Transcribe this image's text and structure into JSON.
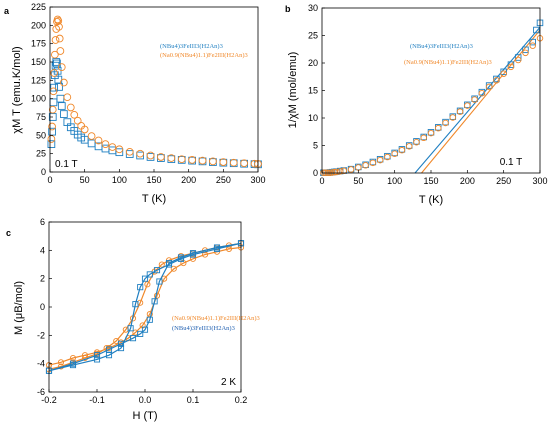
{
  "colors": {
    "blue": "#1f7fc1",
    "orange": "#f0882a",
    "axis": "#000000"
  },
  "chart_data": [
    {
      "panel_label": "a",
      "type": "scatter",
      "xlabel": "T (K)",
      "ylabel": "χM T (emu.K/mol)",
      "xlim": [
        0,
        300
      ],
      "ylim": [
        0,
        225
      ],
      "xticks": [
        "0",
        "50",
        "100",
        "150",
        "200",
        "250",
        "300"
      ],
      "yticks": [
        "0",
        "25",
        "50",
        "75",
        "100",
        "125",
        "150",
        "175",
        "200",
        "225"
      ],
      "annotation": "0.1 T",
      "legend_position": "top-right",
      "series": [
        {
          "name": "(NBu4)3FeIII3(H2An)3",
          "color": "blue",
          "marker": "square",
          "x": [
            2,
            3,
            4,
            5,
            6,
            7,
            8,
            9,
            10,
            11,
            12,
            13,
            15,
            17,
            20,
            25,
            30,
            35,
            40,
            45,
            50,
            60,
            70,
            80,
            90,
            100,
            115,
            130,
            145,
            160,
            175,
            190,
            205,
            220,
            235,
            250,
            265,
            280,
            295,
            300
          ],
          "y": [
            38,
            55,
            75,
            95,
            115,
            132,
            145,
            150,
            148,
            138,
            126,
            116,
            100,
            90,
            79,
            68,
            61,
            56,
            51,
            47,
            44,
            39,
            35,
            32,
            29.5,
            27,
            24.5,
            22.5,
            20.5,
            19,
            17.5,
            16.5,
            15.5,
            14.5,
            13.5,
            12.7,
            12,
            11.3,
            10.7,
            10.5
          ]
        },
        {
          "name": "(Na0.9(NBu4)1.1)Fe2III(H2An)3",
          "color": "orange",
          "marker": "circle",
          "x": [
            2,
            3,
            4,
            5,
            6,
            7,
            8,
            9,
            10,
            11,
            12,
            13,
            14,
            15,
            17,
            20,
            25,
            30,
            35,
            40,
            45,
            50,
            60,
            70,
            80,
            90,
            100,
            115,
            130,
            145,
            160,
            175,
            190,
            205,
            220,
            235,
            250,
            265,
            280,
            295,
            300
          ],
          "y": [
            45,
            62,
            85,
            110,
            135,
            160,
            180,
            195,
            205,
            208,
            206,
            198,
            182,
            165,
            143,
            122,
            102,
            88,
            78,
            70,
            63,
            58,
            49,
            43,
            38,
            34,
            31,
            27.5,
            25,
            22.5,
            20.5,
            19,
            17.5,
            16.5,
            15.5,
            14.5,
            13.5,
            12.7,
            12,
            11.3,
            11
          ]
        }
      ]
    },
    {
      "panel_label": "b",
      "type": "scatter",
      "xlabel": "T (K)",
      "ylabel": "1/χM (mol/emu)",
      "xlim": [
        0,
        300
      ],
      "ylim": [
        0,
        30
      ],
      "xticks": [
        "0",
        "50",
        "100",
        "150",
        "200",
        "250",
        "300"
      ],
      "yticks": [
        "0",
        "5",
        "10",
        "15",
        "20",
        "25",
        "30"
      ],
      "annotation": "0.1 T",
      "legend_position": "top-center",
      "series": [
        {
          "name": "(NBu4)3FeIII3(H2An)3",
          "color": "blue",
          "marker": "square",
          "x": [
            2,
            5,
            8,
            11,
            14,
            17,
            20,
            25,
            30,
            40,
            50,
            60,
            70,
            80,
            90,
            100,
            110,
            120,
            130,
            140,
            150,
            160,
            170,
            180,
            190,
            200,
            210,
            220,
            230,
            240,
            250,
            260,
            270,
            280,
            290,
            295,
            300
          ],
          "y": [
            0.05,
            0.05,
            0.05,
            0.1,
            0.15,
            0.2,
            0.25,
            0.35,
            0.45,
            0.7,
            1.1,
            1.5,
            2.0,
            2.5,
            3.05,
            3.65,
            4.3,
            5.0,
            5.75,
            6.55,
            7.4,
            8.3,
            9.25,
            10.25,
            11.3,
            12.4,
            13.5,
            14.7,
            15.9,
            17.1,
            18.4,
            19.7,
            21.0,
            22.4,
            23.8,
            26.0,
            27.3
          ]
        },
        {
          "name": "(Na0.9(NBu4)1.1)Fe2III(H2An)3",
          "color": "orange",
          "marker": "circle",
          "x": [
            2,
            5,
            8,
            11,
            14,
            17,
            20,
            25,
            30,
            40,
            50,
            60,
            70,
            80,
            90,
            100,
            110,
            120,
            130,
            140,
            150,
            160,
            170,
            180,
            190,
            200,
            210,
            220,
            230,
            240,
            250,
            260,
            270,
            280,
            290,
            300
          ],
          "y": [
            0.05,
            0.05,
            0.05,
            0.05,
            0.1,
            0.15,
            0.2,
            0.3,
            0.4,
            0.65,
            1.0,
            1.4,
            1.85,
            2.35,
            2.9,
            3.5,
            4.15,
            4.85,
            5.6,
            6.4,
            7.25,
            8.15,
            9.1,
            10.1,
            11.15,
            12.25,
            13.35,
            14.5,
            15.65,
            16.85,
            18.05,
            19.3,
            20.55,
            21.85,
            23.15,
            24.5
          ]
        }
      ],
      "fit_lines": [
        {
          "color": "blue",
          "x": [
            128,
            300
          ],
          "y": [
            0,
            26.5
          ]
        },
        {
          "color": "orange",
          "x": [
            137,
            300
          ],
          "y": [
            0,
            26.0
          ]
        }
      ]
    },
    {
      "panel_label": "c",
      "type": "line",
      "xlabel": "H (T)",
      "ylabel": "M (μB/mol)",
      "xlim": [
        -0.2,
        0.2
      ],
      "ylim": [
        -6,
        6
      ],
      "xticks": [
        "-0.2",
        "-0.1",
        "0.0",
        "0.1",
        "0.2"
      ],
      "yticks": [
        "-6",
        "-4",
        "-2",
        "0",
        "2",
        "4",
        "6"
      ],
      "annotation": "2 K",
      "legend_position": "center-right",
      "series": [
        {
          "name": "(Na0.9(NBu4)1.1)Fe2III(H2An)3",
          "color": "orange",
          "marker": "circle",
          "x": [
            -0.2,
            -0.175,
            -0.15,
            -0.125,
            -0.1,
            -0.075,
            -0.05,
            -0.035,
            -0.02,
            -0.005,
            0.01,
            0.025,
            0.04,
            0.06,
            0.08,
            0.1,
            0.125,
            0.15,
            0.175,
            0.2,
            0.2,
            0.175,
            0.15,
            0.125,
            0.1,
            0.075,
            0.05,
            0.035,
            0.02,
            0.005,
            -0.01,
            -0.025,
            -0.04,
            -0.06,
            -0.08,
            -0.1,
            -0.125,
            -0.15,
            -0.175,
            -0.2
          ],
          "y": [
            -4.1,
            -3.9,
            -3.6,
            -3.4,
            -3.2,
            -2.9,
            -2.5,
            -2.2,
            -1.8,
            -1.3,
            -0.5,
            0.8,
            2.0,
            2.7,
            3.1,
            3.4,
            3.7,
            3.9,
            4.1,
            4.2,
            4.5,
            4.35,
            4.2,
            4.0,
            3.8,
            3.6,
            3.3,
            3.0,
            2.5,
            1.6,
            0.3,
            -0.8,
            -1.6,
            -2.4,
            -2.9,
            -3.3,
            -3.6,
            -3.9,
            -4.2,
            -4.4
          ]
        },
        {
          "name": "(NBu4)3FeIII3(H2An)3",
          "color": "blue",
          "marker": "square",
          "x": [
            -0.2,
            -0.15,
            -0.1,
            -0.075,
            -0.05,
            -0.025,
            -0.01,
            0.0,
            0.01,
            0.02,
            0.03,
            0.05,
            0.075,
            0.1,
            0.15,
            0.2,
            0.2,
            0.15,
            0.1,
            0.075,
            0.05,
            0.025,
            0.01,
            0.0,
            -0.01,
            -0.02,
            -0.03,
            -0.05,
            -0.075,
            -0.1,
            -0.15,
            -0.2
          ],
          "y": [
            -4.5,
            -4.0,
            -3.4,
            -3.0,
            -2.6,
            -2.2,
            -1.9,
            -1.6,
            -0.9,
            0.4,
            1.8,
            3.1,
            3.5,
            3.8,
            4.2,
            4.5,
            4.5,
            4.1,
            3.7,
            3.4,
            3.0,
            2.6,
            2.3,
            2.0,
            1.4,
            0.2,
            -1.5,
            -2.9,
            -3.4,
            -3.7,
            -4.1,
            -4.5
          ]
        }
      ]
    }
  ]
}
